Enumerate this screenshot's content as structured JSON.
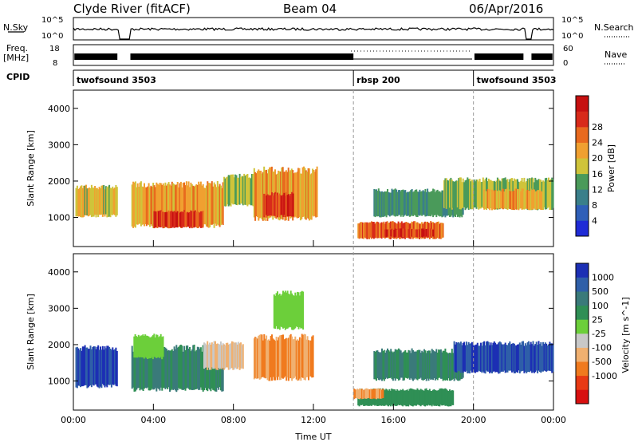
{
  "header": {
    "station": "Clyde River (fitACF)",
    "beam": "Beam 04",
    "date": "06/Apr/2016"
  },
  "strips": {
    "nsky_label": "N.Sky",
    "nsky_ticks": [
      "10^5",
      "10^0"
    ],
    "nsearch_label": "N.Search",
    "freq_label_1": "Freq.",
    "freq_label_2": "[MHz]",
    "freq_ticks": [
      "18",
      "8"
    ],
    "nave_label": "Nave",
    "nave_ticks": [
      "60",
      "0"
    ],
    "cpid_label": "CPID",
    "cpid_segments": [
      {
        "label": "twofsound 3503",
        "start": 0,
        "end": 14
      },
      {
        "label": "rbsp 200",
        "start": 14,
        "end": 20
      },
      {
        "label": "twofsound 3503",
        "start": 20,
        "end": 24
      }
    ]
  },
  "power_colorbar": {
    "title": "Power [dB]",
    "ticks": [
      "4",
      "8",
      "12",
      "16",
      "20",
      "24",
      "28"
    ],
    "colors": [
      "#1f2bd6",
      "#2f5fb8",
      "#3a7f8a",
      "#4a9a5a",
      "#cfc43a",
      "#f0a030",
      "#e86a1e",
      "#d82a1a",
      "#c61010"
    ]
  },
  "velocity_colorbar": {
    "title": "Velocity [m s^-1]",
    "ticks": [
      "1000",
      "500",
      "100",
      "25",
      "-25",
      "-100",
      "-500",
      "-1000"
    ],
    "colors": [
      "#1c2fb4",
      "#2f5fa8",
      "#3a7a7a",
      "#2f8f55",
      "#6ccf3a",
      "#c8c8c8",
      "#f0b070",
      "#f07a1e",
      "#e83a14",
      "#d81010"
    ]
  },
  "chart_data": {
    "type": "heatmap",
    "xlabel": "Time UT",
    "ylabel": "Slant Range [km]",
    "xlim": [
      0,
      24
    ],
    "ylim": [
      200,
      4500
    ],
    "x_ticks": [
      "00:00",
      "04:00",
      "08:00",
      "12:00",
      "16:00",
      "20:00",
      "00:00"
    ],
    "y_ticks": [
      1000,
      2000,
      3000,
      4000
    ],
    "mode_boundaries_hours": [
      14,
      20
    ],
    "power_regions": [
      {
        "t0": 0.1,
        "t1": 2.2,
        "r0": 1000,
        "r1": 1900,
        "level": 16
      },
      {
        "t0": 2.9,
        "t1": 7.5,
        "r0": 700,
        "r1": 2000,
        "level": 20
      },
      {
        "t0": 4.0,
        "t1": 6.5,
        "r0": 700,
        "r1": 1200,
        "level": 28
      },
      {
        "t0": 7.5,
        "t1": 9.0,
        "r0": 1300,
        "r1": 2200,
        "level": 14
      },
      {
        "t0": 9.0,
        "t1": 12.2,
        "r0": 900,
        "r1": 2400,
        "level": 20
      },
      {
        "t0": 9.5,
        "t1": 11.0,
        "r0": 1000,
        "r1": 1700,
        "level": 28
      },
      {
        "t0": 14.2,
        "t1": 18.5,
        "r0": 400,
        "r1": 900,
        "level": 24
      },
      {
        "t0": 15.5,
        "t1": 18.0,
        "r0": 450,
        "r1": 700,
        "level": 28
      },
      {
        "t0": 15.0,
        "t1": 19.5,
        "r0": 1000,
        "r1": 1800,
        "level": 10
      },
      {
        "t0": 18.5,
        "t1": 24.0,
        "r0": 1200,
        "r1": 2100,
        "level": 14
      },
      {
        "t0": 20.5,
        "t1": 23.5,
        "r0": 1200,
        "r1": 1800,
        "level": 20
      }
    ],
    "velocity_regions": [
      {
        "t0": 0.1,
        "t1": 2.2,
        "r0": 800,
        "r1": 2000,
        "level": 1000
      },
      {
        "t0": 2.9,
        "t1": 7.5,
        "r0": 700,
        "r1": 2000,
        "level": 100
      },
      {
        "t0": 3.0,
        "t1": 4.5,
        "r0": 1600,
        "r1": 2300,
        "level": 0
      },
      {
        "t0": 6.5,
        "t1": 8.5,
        "r0": 1300,
        "r1": 2100,
        "level": -100
      },
      {
        "t0": 9.0,
        "t1": 12.0,
        "r0": 1000,
        "r1": 2300,
        "level": -500
      },
      {
        "t0": 10.0,
        "t1": 11.5,
        "r0": 2400,
        "r1": 3500,
        "level": 0
      },
      {
        "t0": 14.2,
        "t1": 19.0,
        "r0": 300,
        "r1": 800,
        "level": 50
      },
      {
        "t0": 14.0,
        "t1": 15.5,
        "r0": 500,
        "r1": 800,
        "level": -500
      },
      {
        "t0": 15.0,
        "t1": 19.5,
        "r0": 1000,
        "r1": 1900,
        "level": 100
      },
      {
        "t0": 19.0,
        "t1": 24.0,
        "r0": 1200,
        "r1": 2100,
        "level": 1000
      }
    ]
  }
}
